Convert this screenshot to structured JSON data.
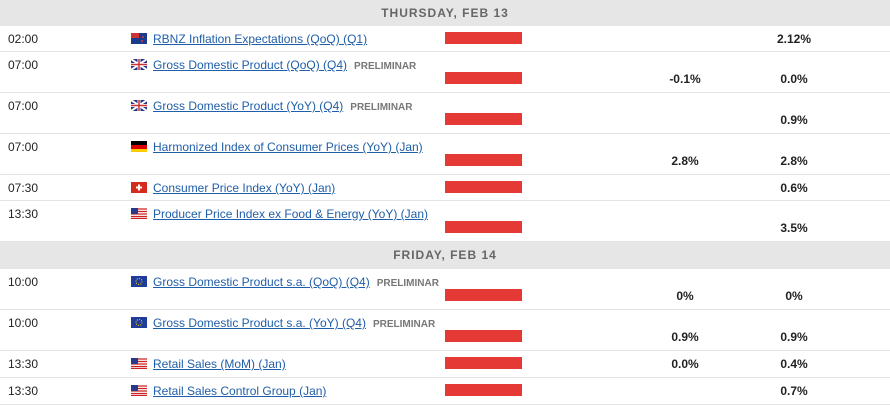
{
  "days": [
    {
      "label": "THURSDAY, FEB 13",
      "events": [
        {
          "time": "02:00",
          "event": "RBNZ Inflation Expectations (QoQ) (Q1)",
          "previous": "2.12%"
        },
        {
          "time": "07:00",
          "event": "Gross Domestic Product (QoQ) (Q4)",
          "tag": "PRELIMINAR",
          "forecast": "-0.1%",
          "previous": "0.0%"
        },
        {
          "time": "07:00",
          "event": "Gross Domestic Product (YoY) (Q4)",
          "tag": "PRELIMINAR",
          "previous": "0.9%"
        },
        {
          "time": "07:00",
          "event": "Harmonized Index of Consumer Prices (YoY) (Jan)",
          "forecast": "2.8%",
          "previous": "2.8%"
        },
        {
          "time": "07:30",
          "event": "Consumer Price Index (YoY) (Jan)",
          "previous": "0.6%"
        },
        {
          "time": "13:30",
          "event": "Producer Price Index ex Food & Energy (YoY) (Jan)",
          "previous": "3.5%"
        }
      ]
    },
    {
      "label": "FRIDAY, FEB 14",
      "events": [
        {
          "time": "10:00",
          "event": "Gross Domestic Product s.a. (QoQ) (Q4)",
          "tag": "PRELIMINAR",
          "forecast": "0%",
          "previous": "0%"
        },
        {
          "time": "10:00",
          "event": "Gross Domestic Product s.a. (YoY) (Q4)",
          "tag": "PRELIMINAR",
          "forecast": "0.9%",
          "previous": "0.9%"
        },
        {
          "time": "13:30",
          "event": "Retail Sales (MoM) (Jan)",
          "forecast": "0.0%",
          "previous": "0.4%"
        },
        {
          "time": "13:30",
          "event": "Retail Sales Control Group (Jan)",
          "previous": "0.7%"
        }
      ]
    }
  ]
}
